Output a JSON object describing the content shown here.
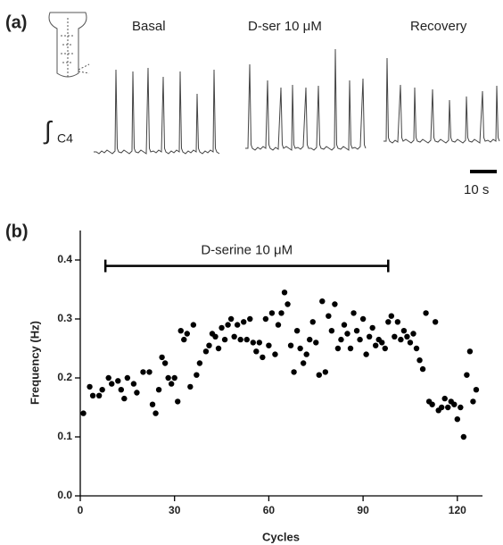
{
  "chart_data": [
    {
      "type": "traces",
      "panel_label": "(a)",
      "conditions": [
        "Basal",
        "D-ser 10 μM",
        "Recovery"
      ],
      "integral_symbol": "∫",
      "signal_label": "C4",
      "scale_bar_label": "10 s"
    },
    {
      "type": "scatter",
      "panel_label": "(b)",
      "xlabel": "Cycles",
      "ylabel": "Frequency (Hz)",
      "color": "#000000",
      "annotation": {
        "text": "D-serine 10 μM",
        "x": [
          8,
          98
        ],
        "y": 0.39
      },
      "xlim": [
        0,
        128
      ],
      "ylim": [
        0,
        0.45
      ],
      "xticks": [
        0,
        30,
        60,
        90,
        120
      ],
      "yticks": [
        {
          "value": 0,
          "label": "0.0"
        },
        0.1,
        0.2,
        0.3,
        0.4
      ],
      "x": [
        1,
        3,
        4,
        6,
        7,
        9,
        10,
        12,
        13,
        14,
        15,
        17,
        18,
        20,
        22,
        23,
        24,
        25,
        26,
        27,
        28,
        29,
        30,
        31,
        32,
        33,
        34,
        35,
        36,
        37,
        38,
        40,
        41,
        42,
        43,
        44,
        45,
        46,
        47,
        48,
        49,
        50,
        51,
        52,
        53,
        54,
        55,
        56,
        57,
        58,
        59,
        60,
        61,
        62,
        63,
        64,
        65,
        66,
        67,
        68,
        69,
        70,
        71,
        72,
        73,
        74,
        75,
        76,
        77,
        78,
        79,
        80,
        81,
        82,
        83,
        84,
        85,
        86,
        87,
        88,
        89,
        90,
        91,
        92,
        93,
        94,
        95,
        96,
        97,
        98,
        99,
        100,
        101,
        102,
        103,
        104,
        105,
        106,
        107,
        108,
        109,
        110,
        111,
        112,
        113,
        114,
        115,
        116,
        117,
        118,
        119,
        120,
        121,
        122,
        123,
        124,
        125,
        126
      ],
      "values": [
        0.14,
        0.185,
        0.17,
        0.17,
        0.18,
        0.2,
        0.19,
        0.195,
        0.18,
        0.165,
        0.2,
        0.19,
        0.175,
        0.21,
        0.21,
        0.155,
        0.14,
        0.18,
        0.235,
        0.225,
        0.2,
        0.19,
        0.2,
        0.16,
        0.28,
        0.265,
        0.275,
        0.185,
        0.29,
        0.205,
        0.225,
        0.245,
        0.255,
        0.275,
        0.27,
        0.25,
        0.285,
        0.265,
        0.29,
        0.3,
        0.27,
        0.29,
        0.265,
        0.295,
        0.265,
        0.3,
        0.26,
        0.245,
        0.26,
        0.235,
        0.3,
        0.255,
        0.31,
        0.24,
        0.29,
        0.31,
        0.345,
        0.325,
        0.255,
        0.21,
        0.28,
        0.25,
        0.225,
        0.24,
        0.265,
        0.295,
        0.26,
        0.205,
        0.33,
        0.21,
        0.305,
        0.28,
        0.325,
        0.25,
        0.265,
        0.29,
        0.275,
        0.25,
        0.31,
        0.28,
        0.265,
        0.3,
        0.24,
        0.27,
        0.285,
        0.255,
        0.265,
        0.26,
        0.25,
        0.295,
        0.305,
        0.27,
        0.295,
        0.265,
        0.28,
        0.27,
        0.26,
        0.275,
        0.25,
        0.23,
        0.215,
        0.31,
        0.16,
        0.155,
        0.295,
        0.145,
        0.15,
        0.165,
        0.15,
        0.16,
        0.155,
        0.13,
        0.15,
        0.1,
        0.205,
        0.245,
        0.16,
        0.18
      ]
    }
  ]
}
